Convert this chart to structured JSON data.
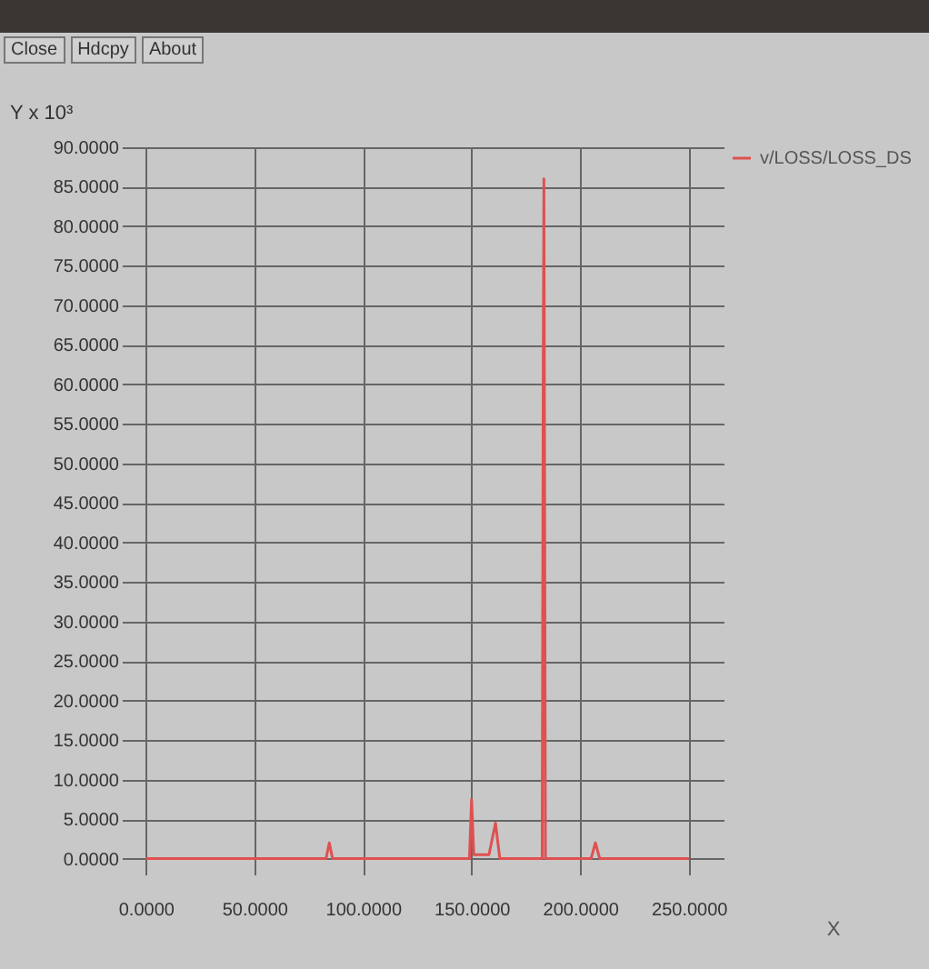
{
  "chart_data": {
    "type": "line",
    "ylabel": "Y x 10³",
    "xlabel": "X",
    "annotations": [
      "Close",
      "Hdcpy",
      "About"
    ],
    "x": [
      0,
      83,
      84.5,
      86,
      149,
      150,
      151,
      158,
      161,
      163,
      182.5,
      183,
      183.3,
      184,
      205,
      207,
      209,
      250
    ],
    "series": [
      {
        "name": "v/LOSS/LOSS_DS",
        "color": "#e05050",
        "values": [
          0,
          0,
          2,
          0,
          0,
          7.5,
          0.5,
          0.5,
          4.5,
          0,
          0,
          64,
          86,
          0,
          0,
          2,
          0,
          0
        ]
      }
    ],
    "xlim": [
      -6,
      266
    ],
    "xticks": [
      {
        "value": 0,
        "label": "0.0000"
      },
      {
        "value": 50,
        "label": "50.0000"
      },
      {
        "value": 100,
        "label": "100.0000"
      },
      {
        "value": 150,
        "label": "150.0000"
      },
      {
        "value": 200,
        "label": "200.0000"
      },
      {
        "value": 250,
        "label": "250.0000"
      }
    ],
    "ylim": [
      -2,
      90
    ],
    "yticks": [
      {
        "value": 0,
        "label": "0.0000"
      },
      {
        "value": 5,
        "label": "5.0000"
      },
      {
        "value": 10,
        "label": "10.0000"
      },
      {
        "value": 15,
        "label": "15.0000"
      },
      {
        "value": 20,
        "label": "20.0000"
      },
      {
        "value": 25,
        "label": "25.0000"
      },
      {
        "value": 30,
        "label": "30.0000"
      },
      {
        "value": 35,
        "label": "35.0000"
      },
      {
        "value": 40,
        "label": "40.0000"
      },
      {
        "value": 45,
        "label": "45.0000"
      },
      {
        "value": 50,
        "label": "50.0000"
      },
      {
        "value": 55,
        "label": "55.0000"
      },
      {
        "value": 60,
        "label": "60.0000"
      },
      {
        "value": 65,
        "label": "65.0000"
      },
      {
        "value": 70,
        "label": "70.0000"
      },
      {
        "value": 75,
        "label": "75.0000"
      },
      {
        "value": 80,
        "label": "80.0000"
      },
      {
        "value": 85,
        "label": "85.0000"
      },
      {
        "value": 90,
        "label": "90.0000"
      }
    ],
    "grid": true,
    "legend": "top right",
    "line_style": "solid",
    "marker": "none"
  }
}
